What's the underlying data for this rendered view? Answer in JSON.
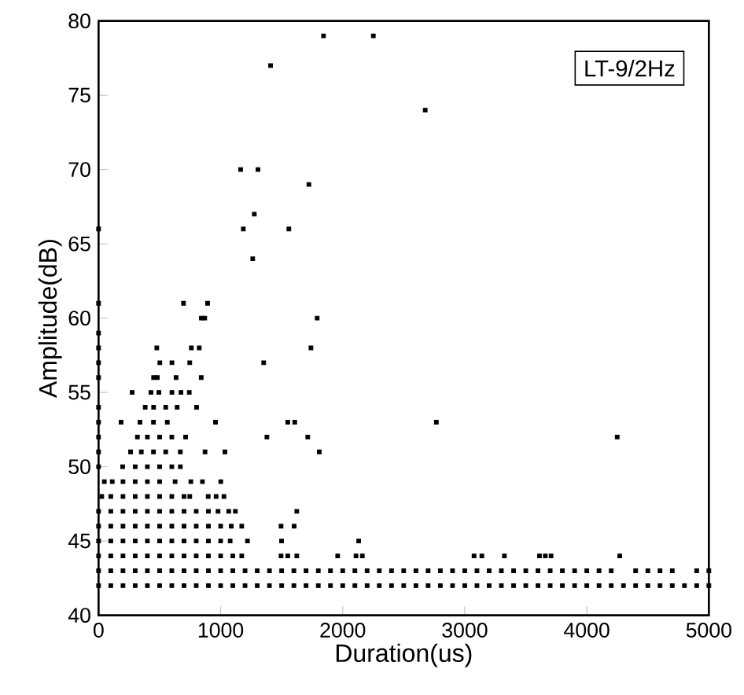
{
  "chart_data": {
    "type": "scatter",
    "xlabel": "Duration(us)",
    "ylabel": "Amplitude(dB)",
    "annotations": [
      "LT-9/2Hz"
    ],
    "xlim": [
      0,
      5000
    ],
    "ylim": [
      40,
      80
    ],
    "xticks": [
      0,
      1000,
      2000,
      3000,
      4000,
      5000
    ],
    "yticks": [
      40,
      45,
      50,
      55,
      60,
      65,
      70,
      75,
      80
    ],
    "marker": "square",
    "grid": false,
    "series": [
      {
        "color": "#000000",
        "x": [
          0,
          100,
          200,
          300,
          400,
          500,
          600,
          700,
          800,
          900,
          1000,
          1100,
          1200,
          1300,
          1400,
          1500,
          1600,
          1700,
          1800,
          1900,
          2000,
          2100,
          2200,
          2300,
          2400,
          2500,
          2600,
          2700,
          2800,
          2900,
          3000,
          3100,
          3200,
          3300,
          3400,
          3500,
          3600,
          3700,
          3800,
          3900,
          4000,
          4100,
          4200,
          4300,
          4400,
          4500,
          4600,
          4700,
          4800,
          4900,
          5000
        ],
        "values": [
          42,
          42,
          42,
          42,
          42,
          42,
          42,
          42,
          42,
          42,
          42,
          42,
          42,
          42,
          42,
          42,
          42,
          42,
          42,
          42,
          42,
          42,
          42,
          42,
          42,
          42,
          42,
          42,
          42,
          42,
          42,
          42,
          42,
          42,
          42,
          42,
          42,
          42,
          42,
          42,
          42,
          42,
          42,
          42,
          42,
          42,
          42,
          42,
          42,
          42,
          42
        ]
      },
      {
        "color": "#000000",
        "x": [
          0,
          100,
          200,
          300,
          400,
          500,
          600,
          700,
          800,
          900,
          1000,
          1100,
          1200,
          1300,
          1400,
          1500,
          1600,
          1700,
          1800,
          1900,
          2000,
          2100,
          2200,
          2300,
          2400,
          2500,
          2600,
          2700,
          2800,
          2900,
          3000,
          3100,
          3200,
          3300,
          3400,
          3500,
          3600,
          3700,
          3800,
          3900,
          4000,
          4100,
          4200,
          4400,
          4500,
          4600,
          4700,
          4900,
          5000
        ],
        "values": [
          43,
          43,
          43,
          43,
          43,
          43,
          43,
          43,
          43,
          43,
          43,
          43,
          43,
          43,
          43,
          43,
          43,
          43,
          43,
          43,
          43,
          43,
          43,
          43,
          43,
          43,
          43,
          43,
          43,
          43,
          43,
          43,
          43,
          43,
          43,
          43,
          43,
          43,
          43,
          43,
          43,
          43,
          43,
          43,
          43,
          43,
          43,
          43,
          43
        ]
      },
      {
        "color": "#000000",
        "x": [
          0,
          100,
          200,
          300,
          400,
          500,
          600,
          700,
          800,
          900,
          1000,
          1100,
          1173,
          1495,
          1550,
          1624,
          1959,
          2109,
          2161,
          3076,
          3140,
          3325,
          3612,
          3660,
          3707,
          4270
        ],
        "values": [
          44,
          44,
          44,
          44,
          44,
          44,
          44,
          44,
          44,
          44,
          44,
          44,
          44,
          44,
          44,
          44,
          44,
          44,
          44,
          44,
          44,
          44,
          44,
          44,
          44,
          44
        ]
      },
      {
        "color": "#000000",
        "x": [
          0,
          100,
          200,
          300,
          400,
          500,
          600,
          700,
          800,
          900,
          1000,
          1078,
          1220,
          1499,
          2131
        ],
        "values": [
          45,
          45,
          45,
          45,
          45,
          45,
          45,
          45,
          45,
          45,
          45,
          45,
          45,
          45,
          45
        ]
      },
      {
        "color": "#000000",
        "x": [
          0,
          100,
          200,
          300,
          400,
          500,
          600,
          700,
          800,
          900,
          1000,
          1087,
          1173,
          1495,
          1602
        ],
        "values": [
          46,
          46,
          46,
          46,
          46,
          46,
          46,
          46,
          46,
          46,
          46,
          46,
          46,
          46,
          46
        ]
      },
      {
        "color": "#000000",
        "x": [
          0,
          100,
          200,
          300,
          400,
          500,
          600,
          700,
          800,
          900,
          979,
          1066,
          1121,
          1624
        ],
        "values": [
          47,
          47,
          47,
          47,
          47,
          47,
          47,
          47,
          47,
          47,
          47,
          47,
          47,
          47
        ]
      },
      {
        "color": "#000000",
        "x": [
          26,
          100,
          200,
          300,
          400,
          500,
          600,
          700,
          747,
          898,
          963,
          1027
        ],
        "values": [
          48,
          48,
          48,
          48,
          48,
          48,
          48,
          48,
          48,
          48,
          48,
          48
        ]
      },
      {
        "color": "#000000",
        "x": [
          47,
          112,
          200,
          300,
          400,
          500,
          627,
          756,
          851,
          1001
        ],
        "values": [
          49,
          49,
          49,
          49,
          49,
          49,
          49,
          49,
          49,
          49
        ]
      },
      {
        "color": "#000000",
        "x": [
          0,
          197,
          300,
          400,
          500,
          600,
          670
        ],
        "values": [
          50,
          50,
          50,
          50,
          50,
          50,
          50
        ]
      },
      {
        "color": "#000000",
        "x": [
          0,
          262,
          350,
          450,
          550,
          670,
          872,
          1035,
          1808
        ],
        "values": [
          51,
          51,
          51,
          51,
          51,
          51,
          51,
          51,
          51
        ]
      },
      {
        "color": "#000000",
        "x": [
          0,
          318,
          400,
          500,
          600,
          713,
          1379,
          1714,
          4249
        ],
        "values": [
          52,
          52,
          52,
          52,
          52,
          52,
          52,
          52,
          52
        ]
      },
      {
        "color": "#000000",
        "x": [
          0,
          184,
          339,
          450,
          563,
          958,
          1550,
          1607,
          2767
        ],
        "values": [
          53,
          53,
          53,
          53,
          53,
          53,
          53,
          53,
          53
        ]
      },
      {
        "color": "#000000",
        "x": [
          0,
          382,
          451,
          550,
          644,
          803
        ],
        "values": [
          54,
          54,
          54,
          54,
          54,
          54
        ]
      },
      {
        "color": "#000000",
        "x": [
          275,
          429,
          494,
          601,
          675,
          743
        ],
        "values": [
          55,
          55,
          55,
          55,
          55,
          55
        ]
      },
      {
        "color": "#000000",
        "x": [
          0,
          451,
          481,
          635,
          841,
          0,
          502,
          601,
          747,
          1353,
          0,
          477,
          760,
          825,
          1740,
          0,
          842,
          870,
          1791,
          0,
          696,
          893
        ],
        "values": [
          56,
          56,
          56,
          56,
          56,
          57,
          57,
          57,
          57,
          57,
          58,
          58,
          58,
          58,
          58,
          59,
          60,
          60,
          60,
          61,
          61,
          61
        ]
      },
      {
        "color": "#000000",
        "x": [
          1263,
          0,
          1186,
          1559,
          1276,
          1723,
          1164,
          1306,
          2676,
          1409,
          1843,
          2251
        ],
        "values": [
          64,
          66,
          66,
          66,
          67,
          69,
          70,
          70,
          74,
          77,
          79,
          79
        ]
      }
    ]
  }
}
